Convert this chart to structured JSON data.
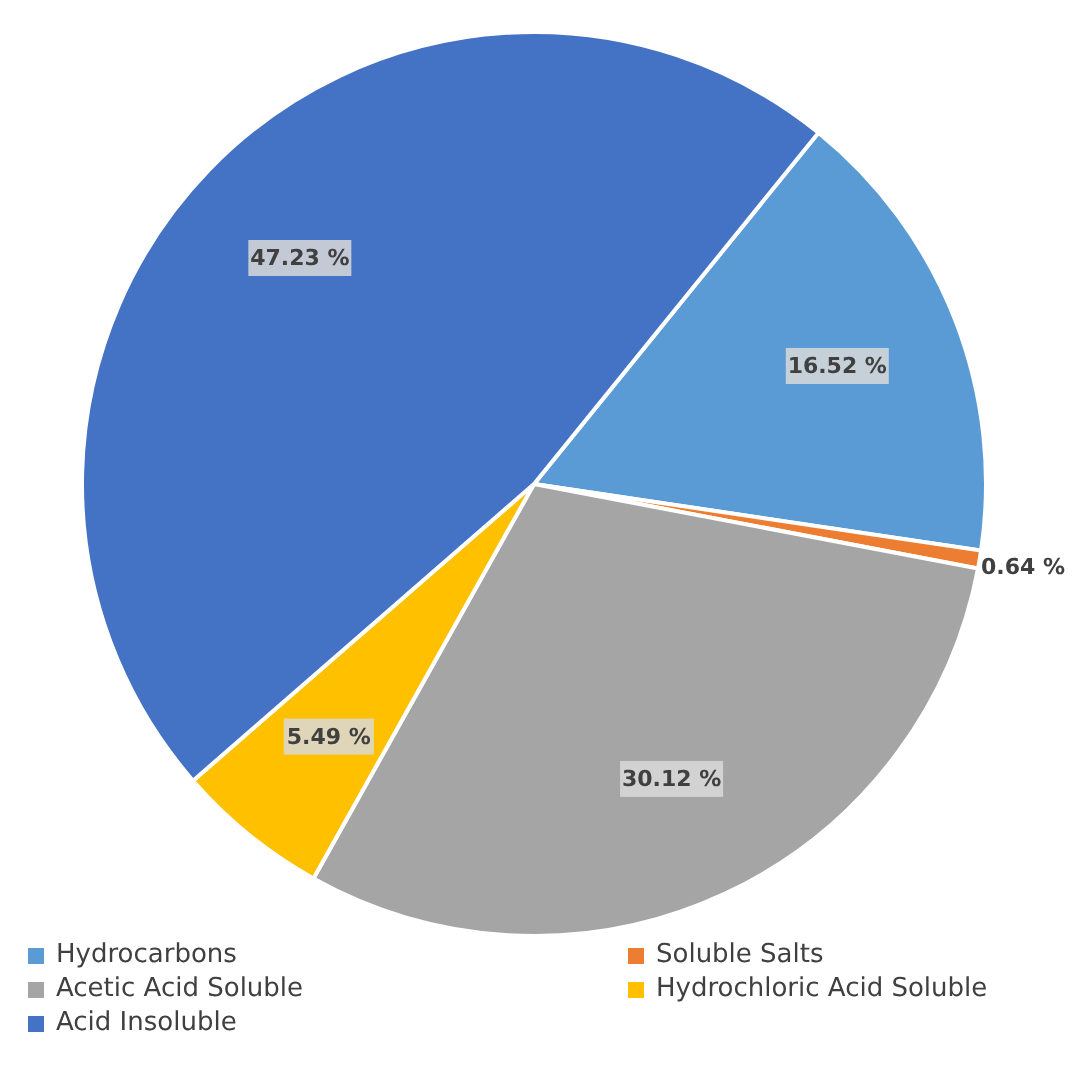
{
  "chart_data": {
    "type": "pie",
    "categories": [
      "Hydrocarbons",
      "Soluble Salts",
      "Acetic Acid Soluble",
      "Hydrochloric Acid Soluble",
      "Acid Insoluble"
    ],
    "values": [
      16.52,
      0.64,
      30.12,
      5.49,
      47.23
    ],
    "colors": [
      "#5b9bd5",
      "#ed7d31",
      "#a5a5a5",
      "#ffc000",
      "#4472c4"
    ],
    "value_labels": [
      "16.52 %",
      "0.64 %",
      "30.12 %",
      "5.49 %",
      "47.23 %"
    ],
    "legend": "bottom"
  }
}
